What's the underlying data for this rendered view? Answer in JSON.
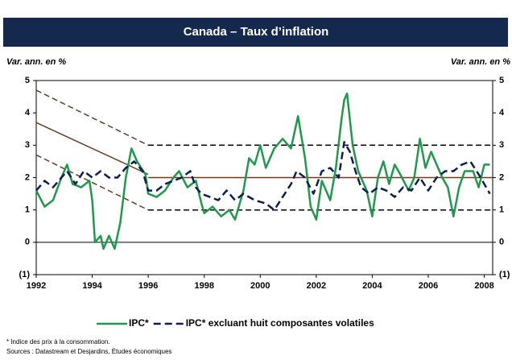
{
  "chart_data": {
    "type": "line",
    "title": "Canada – Taux d’inflation",
    "ylabel": "Var. ann. en %",
    "y2label": "Var. ann. en %",
    "xlim": [
      1992,
      2008.3
    ],
    "xticks": [
      1992,
      1994,
      1996,
      1998,
      2000,
      2002,
      2004,
      2006,
      2008
    ],
    "ylim": [
      -1,
      5
    ],
    "yticks": [
      {
        "value": -1,
        "label": "(1)"
      },
      0,
      1,
      2,
      3,
      4,
      5
    ],
    "y2lim": [
      -1,
      5
    ],
    "y2ticks": [
      {
        "value": -1,
        "label": "(1)"
      },
      0,
      1,
      2,
      3,
      4,
      5
    ],
    "series": [
      {
        "name": "IPC*",
        "color": "#1e9a4a",
        "dash": false,
        "x": [
          1992.0,
          1992.3,
          1992.6,
          1992.9,
          1993.1,
          1993.3,
          1993.6,
          1993.9,
          1994.0,
          1994.1,
          1994.3,
          1994.4,
          1994.6,
          1994.8,
          1995.0,
          1995.2,
          1995.4,
          1995.6,
          1995.9,
          1996.0,
          1996.3,
          1996.6,
          1996.9,
          1997.1,
          1997.4,
          1997.7,
          1997.9,
          1998.0,
          1998.3,
          1998.6,
          1998.9,
          1999.1,
          1999.4,
          1999.6,
          1999.8,
          2000.0,
          2000.2,
          2000.5,
          2000.8,
          2001.1,
          2001.35,
          2001.6,
          2001.8,
          2002.0,
          2002.2,
          2002.5,
          2002.7,
          2002.9,
          2003.0,
          2003.1,
          2003.3,
          2003.5,
          2003.8,
          2004.0,
          2004.2,
          2004.4,
          2004.6,
          2004.8,
          2005.0,
          2005.3,
          2005.5,
          2005.7,
          2005.9,
          2006.1,
          2006.3,
          2006.5,
          2006.7,
          2006.9,
          2007.1,
          2007.3,
          2007.6,
          2007.8,
          2008.0,
          2008.2
        ],
        "values": [
          1.6,
          1.1,
          1.3,
          2.0,
          2.4,
          1.8,
          1.7,
          1.9,
          1.3,
          0.0,
          0.2,
          -0.2,
          0.2,
          -0.2,
          0.6,
          2.0,
          2.9,
          2.5,
          2.1,
          1.5,
          1.4,
          1.6,
          2.0,
          2.2,
          1.7,
          1.9,
          1.2,
          0.9,
          1.1,
          0.8,
          1.0,
          0.7,
          1.6,
          2.6,
          2.4,
          3.0,
          2.3,
          2.9,
          3.2,
          2.9,
          3.9,
          2.6,
          1.1,
          0.7,
          1.9,
          1.3,
          2.3,
          3.8,
          4.4,
          4.6,
          3.0,
          2.2,
          1.6,
          0.8,
          2.0,
          2.5,
          1.8,
          2.4,
          2.1,
          1.6,
          2.0,
          3.2,
          2.3,
          2.8,
          2.4,
          2.0,
          1.7,
          0.8,
          1.7,
          2.2,
          2.2,
          1.7,
          2.4,
          2.4
        ]
      },
      {
        "name": "IPC* excluant huit composantes volatiles",
        "color": "#0d1f4f",
        "dash": true,
        "x": [
          1992.0,
          1992.3,
          1992.6,
          1992.9,
          1993.1,
          1993.4,
          1993.7,
          1994.0,
          1994.3,
          1994.6,
          1994.9,
          1995.2,
          1995.5,
          1995.8,
          1996.0,
          1996.3,
          1996.6,
          1996.9,
          1997.2,
          1997.5,
          1997.7,
          1997.9,
          1998.2,
          1998.5,
          1998.8,
          1999.1,
          1999.4,
          1999.8,
          2000.2,
          2000.5,
          2000.8,
          2001.1,
          2001.3,
          2001.6,
          2001.9,
          2002.2,
          2002.5,
          2002.8,
          2003.0,
          2003.2,
          2003.4,
          2003.6,
          2003.9,
          2004.2,
          2004.5,
          2004.8,
          2005.1,
          2005.4,
          2005.7,
          2006.0,
          2006.3,
          2006.6,
          2006.9,
          2007.2,
          2007.5,
          2007.8,
          2008.0,
          2008.2
        ],
        "values": [
          1.6,
          1.9,
          1.7,
          2.0,
          2.2,
          1.8,
          2.2,
          2.0,
          2.2,
          2.0,
          2.0,
          2.3,
          2.5,
          2.2,
          1.6,
          1.6,
          1.8,
          1.9,
          2.0,
          2.2,
          1.7,
          1.5,
          1.4,
          1.3,
          1.6,
          1.3,
          1.5,
          1.3,
          1.2,
          1.0,
          1.4,
          1.8,
          2.2,
          2.0,
          1.5,
          2.2,
          2.3,
          2.0,
          3.1,
          2.8,
          2.2,
          1.7,
          1.5,
          1.7,
          1.6,
          1.4,
          1.7,
          1.6,
          2.0,
          1.6,
          2.0,
          2.2,
          2.2,
          2.4,
          2.5,
          2.1,
          1.8,
          1.5
        ]
      }
    ],
    "target_lines": [
      {
        "x": [
          1992,
          1996
        ],
        "values": [
          3.7,
          2.1
        ],
        "color": "#6b3a1f",
        "dash": false
      },
      {
        "x": [
          1992,
          1996
        ],
        "values": [
          4.7,
          3.0
        ],
        "color": "#6b3a1f",
        "dash": true
      },
      {
        "x": [
          1992,
          1996
        ],
        "values": [
          2.7,
          1.0
        ],
        "color": "#6b3a1f",
        "dash": true
      },
      {
        "x": [
          1996,
          2008.3
        ],
        "values": [
          2,
          2
        ],
        "color": "#6b3a1f",
        "dash": false
      },
      {
        "x": [
          1996,
          2008.3
        ],
        "values": [
          3,
          3
        ],
        "color": "#000000",
        "dash": true
      },
      {
        "x": [
          1996,
          2008.3
        ],
        "values": [
          1,
          1
        ],
        "color": "#000000",
        "dash": true
      }
    ],
    "footnotes": [
      "* Indice des prix à la consommation.",
      "Sources : Datastream et Desjardins, Études économiques"
    ]
  }
}
